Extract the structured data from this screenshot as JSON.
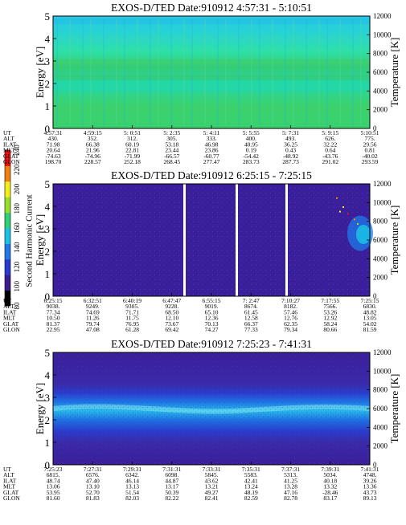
{
  "colorbar": {
    "label": "Second Harmonic Current",
    "ticks": [
      "80",
      "100",
      "120",
      "140",
      "160",
      "180",
      "200",
      "220",
      "240"
    ],
    "colors": [
      "#000000",
      "#3a1f8c",
      "#2a3bd0",
      "#1f7ae8",
      "#19c3e6",
      "#2fd07a",
      "#9ade2c",
      "#f2ee1c",
      "#f08010",
      "#ee1010"
    ]
  },
  "panel_bg_colors": {
    "panel1": [
      "#27c8e4",
      "#2ee0a6",
      "#36cc74",
      "#22d8a8",
      "#3ad270",
      "#2cc896",
      "#40d46e"
    ],
    "panel2": "#3b1e9a",
    "panel3": [
      "#3b1e9a",
      "#2a3ccc",
      "#1f72e4",
      "#26b8e8"
    ]
  },
  "chart_data": [
    {
      "type": "heatmap",
      "title": "EXOS-D/TED   Date:910912   4:57:31 - 5:10:51",
      "ylabel": "Energy [eV]",
      "ylabel_right": "Temperature [K]",
      "yticks": [
        "0",
        "1",
        "2",
        "3",
        "4",
        "5"
      ],
      "yticks_right": [
        "0",
        "2000",
        "4000",
        "6000",
        "8000",
        "10000",
        "12000"
      ],
      "ylim": [
        0,
        5
      ],
      "ylim_right": [
        0,
        12000
      ],
      "ephemeris": {
        "labels": [
          "UT",
          "ALT",
          "ILAT",
          "MLT",
          "GLAT",
          "GLON"
        ],
        "columns": [
          [
            "4:57:31",
            "430.",
            "71.98",
            "20.64",
            "-74.63",
            "198.70"
          ],
          [
            "4:59:15",
            "352.",
            "66.38",
            "21.96",
            "-74.96",
            "228.57"
          ],
          [
            "5: 0:51",
            "312.",
            "60.19",
            "22.81",
            "-71.99",
            "252.18"
          ],
          [
            "5: 2:35",
            "305.",
            "53.18",
            "23.44",
            "-66.57",
            "268.45"
          ],
          [
            "5: 4:11",
            "333.",
            "46.98",
            "23.86",
            "-60.77",
            "277.47"
          ],
          [
            "5: 5:55",
            "400.",
            "40.95",
            "0.19",
            "-54.42",
            "283.73"
          ],
          [
            "5: 7:31",
            "493.",
            "36.25",
            "0.43",
            "-48.92",
            "287.73"
          ],
          [
            "5: 9:15",
            "626.",
            "32.22",
            "0.64",
            "-43.76",
            "291.02"
          ],
          [
            "5:10:51",
            "775.",
            "29.56",
            "0.81",
            "-40.02",
            "293.59"
          ]
        ]
      }
    },
    {
      "type": "heatmap",
      "title": "EXOS-D/TED   Date:910912   6:25:15 - 7:25:15",
      "ylabel": "Energy [eV]",
      "ylabel_right": "Temperature [K]",
      "yticks": [
        "0",
        "1",
        "2",
        "3",
        "4",
        "5"
      ],
      "yticks_right": [
        "0",
        "2000",
        "4000",
        "6000",
        "8000",
        "10000",
        "12000"
      ],
      "ylim": [
        0,
        5
      ],
      "ylim_right": [
        0,
        12000
      ],
      "ephemeris": {
        "labels": [
          "UT",
          "ALT",
          "ILAT",
          "MLT",
          "GLAT",
          "GLON"
        ],
        "columns": [
          [
            "6:25:15",
            "9038.",
            "77.34",
            "10.50",
            "81.37",
            "22.95"
          ],
          [
            "6:32:51",
            "9249.",
            "74.69",
            "11.26",
            "79.74",
            "47.08"
          ],
          [
            "6:40:19",
            "9305.",
            "71.71",
            "11.75",
            "76.95",
            "61.28"
          ],
          [
            "6:47:47",
            "9228.",
            "68.50",
            "12.10",
            "73.67",
            "69.42"
          ],
          [
            "6:55:15",
            "9019.",
            "65.10",
            "12.36",
            "70.13",
            "74.27"
          ],
          [
            "7: 2:47",
            "8674.",
            "61.45",
            "12.58",
            "66.37",
            "77.33"
          ],
          [
            "7:10:27",
            "8182.",
            "57.46",
            "12.76",
            "62.35",
            "79.34"
          ],
          [
            "7:17:55",
            "7566.",
            "53.26",
            "12.92",
            "58.24",
            "80.66"
          ],
          [
            "7:25:15",
            "6830.",
            "48.82",
            "13.05",
            "54.02",
            "81.59"
          ]
        ]
      }
    },
    {
      "type": "heatmap",
      "title": "EXOS-D/TED   Date:910912   7:25:23 - 7:41:31",
      "ylabel": "Energy [eV]",
      "ylabel_right": "Temperature [K]",
      "yticks": [
        "0",
        "1",
        "2",
        "3",
        "4",
        "5"
      ],
      "yticks_right": [
        "0",
        "2000",
        "4000",
        "6000",
        "8000",
        "10000",
        "12000"
      ],
      "ylim": [
        0,
        5
      ],
      "ylim_right": [
        0,
        12000
      ],
      "ephemeris": {
        "labels": [
          "UT",
          "ALT",
          "ILAT",
          "MLT",
          "GLAT",
          "GLON"
        ],
        "columns": [
          [
            "7:25:23",
            "6815.",
            "48.74",
            "13.06",
            "53.95",
            "81.60"
          ],
          [
            "7:27:31",
            "6576.",
            "47.40",
            "13.10",
            "52.70",
            "81.83"
          ],
          [
            "7:29:31",
            "6342.",
            "46.14",
            "13.13",
            "51.54",
            "82.03"
          ],
          [
            "7:31:31",
            "6098.",
            "44.87",
            "13.17",
            "50.39",
            "82.22"
          ],
          [
            "7:33:31",
            "5845.",
            "43.62",
            "13.21",
            "49.27",
            "82.41"
          ],
          [
            "7:35:31",
            "5583.",
            "42.41",
            "13.24",
            "48.19",
            "82.59"
          ],
          [
            "7:37:31",
            "5313.",
            "41.25",
            "13.28",
            "47.16",
            "82.78"
          ],
          [
            "7:39:31",
            "5034.",
            "40.18",
            "13.32",
            "-28.46",
            "83.17"
          ],
          [
            "7:41:31",
            "4748.",
            "39.26",
            "13.36",
            "43.73",
            "89.13"
          ]
        ]
      }
    }
  ]
}
